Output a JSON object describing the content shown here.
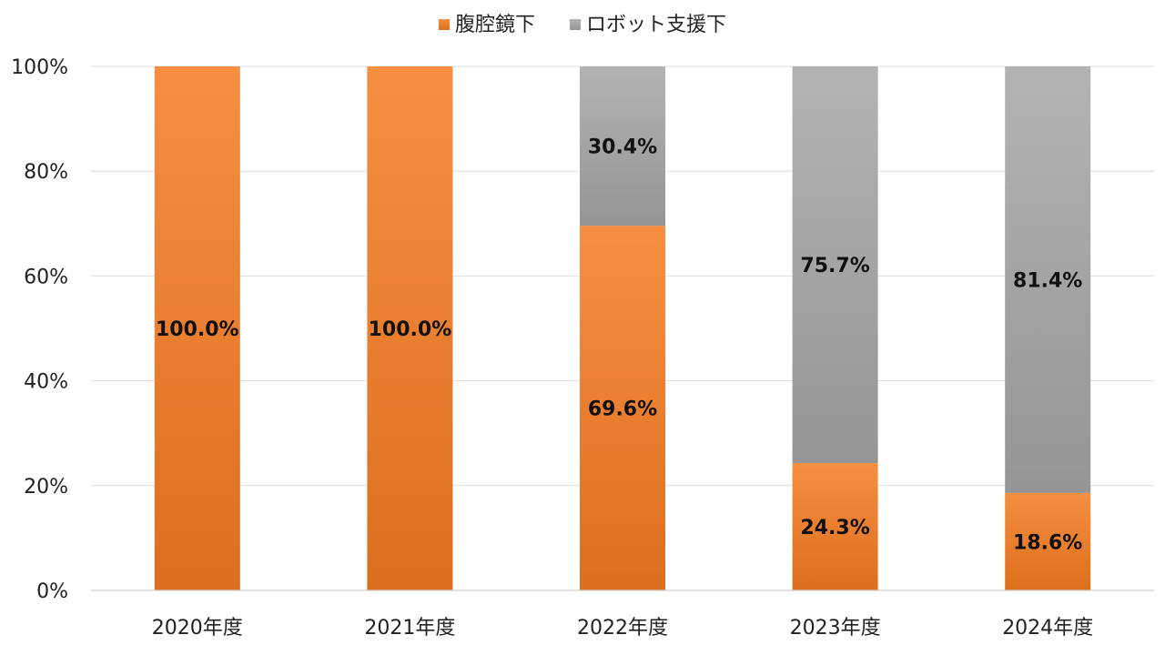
{
  "chart_data": {
    "type": "bar",
    "stacked": true,
    "categories": [
      "2020年度",
      "2021年度",
      "2022年度",
      "2023年度",
      "2024年度"
    ],
    "series": [
      {
        "name": "腹腔鏡下",
        "values": [
          100.0,
          100.0,
          69.6,
          24.3,
          18.6
        ],
        "labels": [
          "100.0%",
          "100.0%",
          "69.6%",
          "24.3%",
          "18.6%"
        ],
        "color": "#F47B20"
      },
      {
        "name": "ロボット支援下",
        "values": [
          0,
          0,
          30.4,
          75.7,
          81.4
        ],
        "labels": [
          "",
          "",
          "30.4%",
          "75.7%",
          "81.4%"
        ],
        "color": "#A5A5A5"
      }
    ],
    "title": "",
    "xlabel": "",
    "ylabel": "",
    "ylim": [
      0,
      100
    ],
    "yticks": [
      "0%",
      "20%",
      "40%",
      "60%",
      "80%",
      "100%"
    ],
    "grid": true,
    "legend": "top"
  }
}
